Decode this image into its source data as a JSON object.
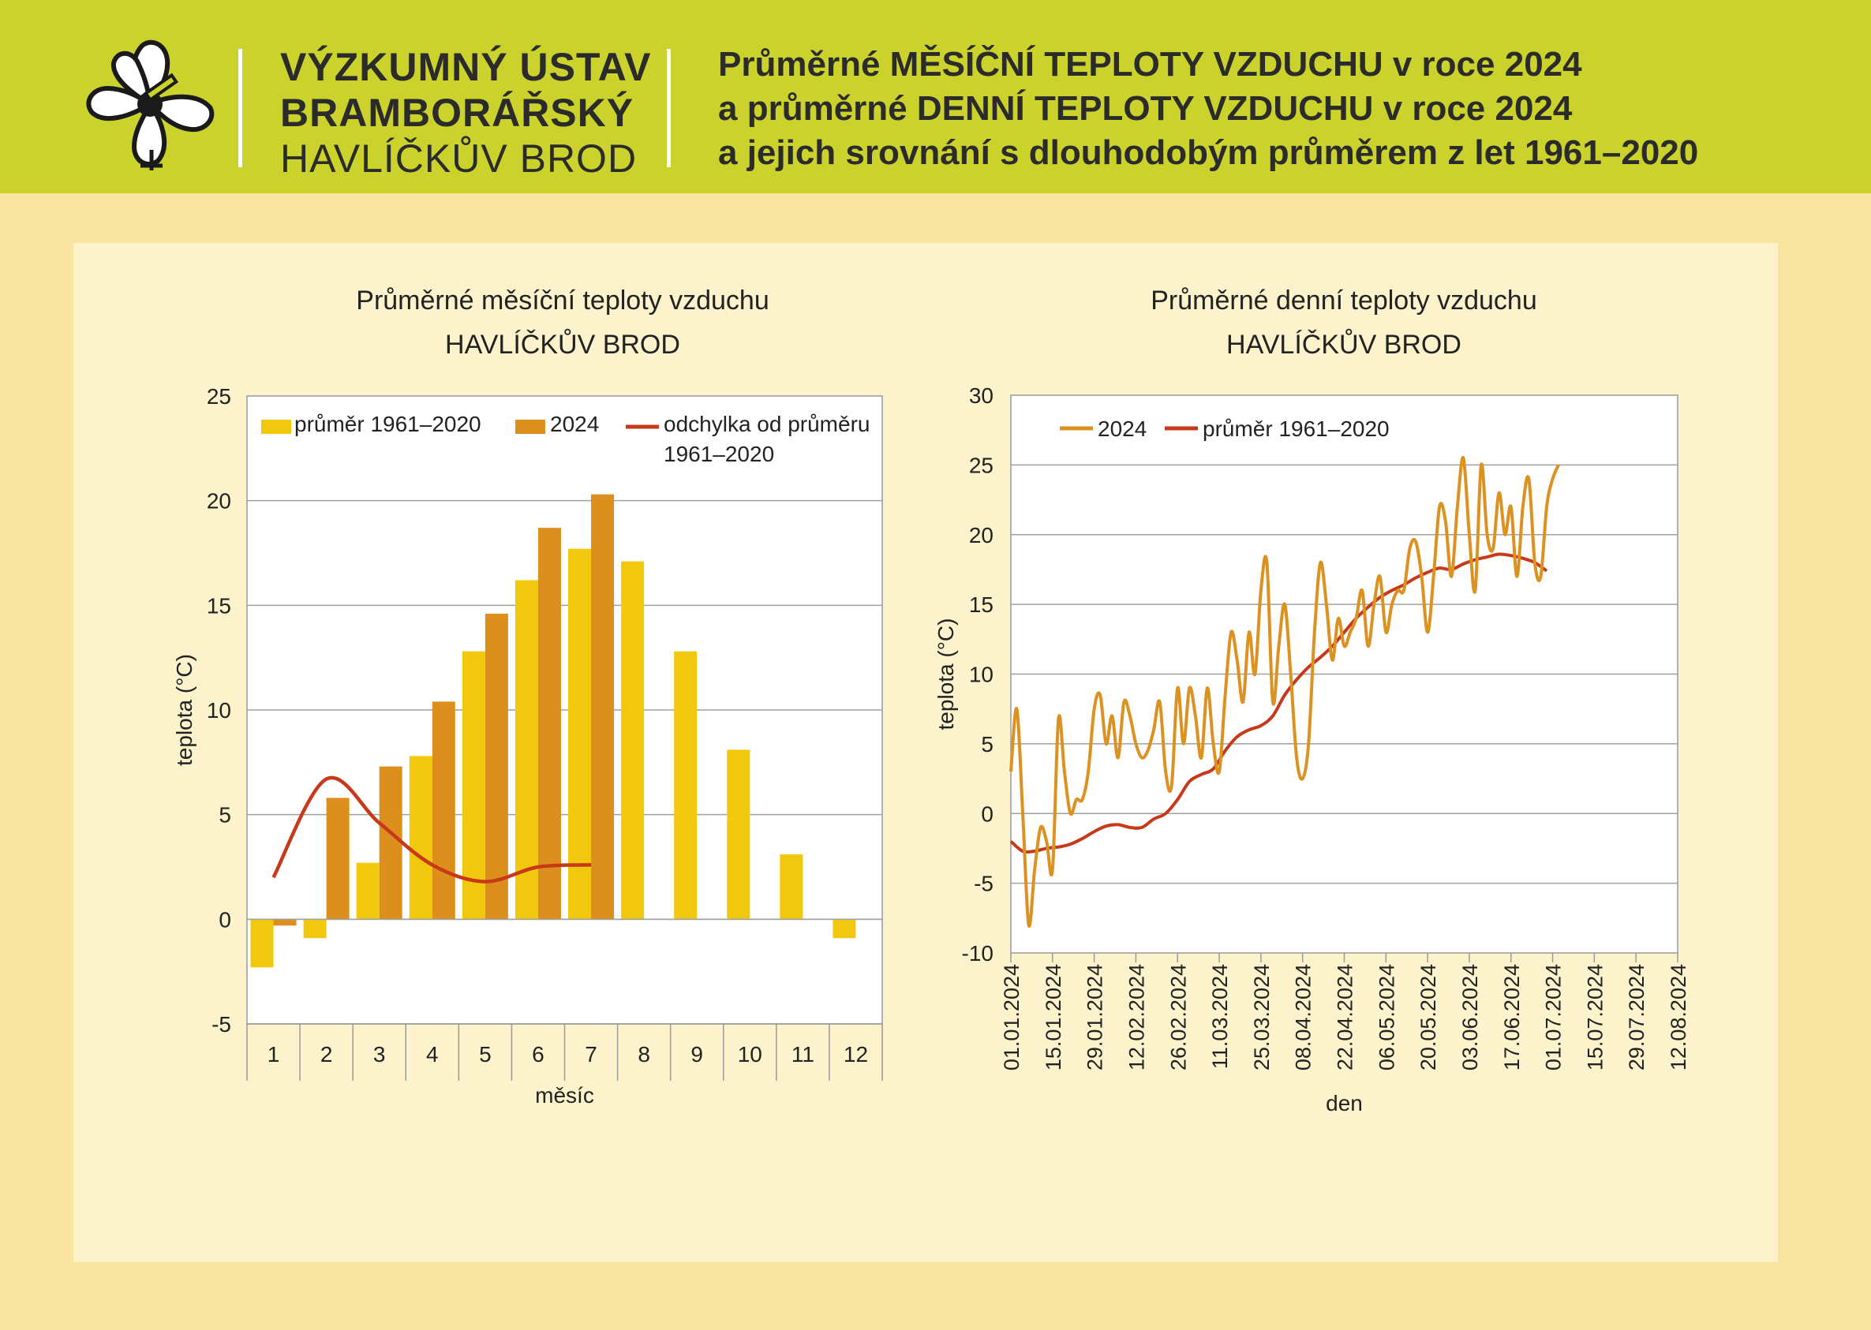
{
  "header": {
    "org_line1": "VÝZKUMNÝ ÚSTAV",
    "org_line2": "BRAMBORÁŘSKÝ",
    "org_line3": "HAVLÍČKŮV BROD",
    "title_line1": "Průměrné MĚSÍČNÍ TEPLOTY VZDUCHU v roce 2024",
    "title_line2": "a průměrné DENNÍ TEPLOTY VZDUCHU v roce 2024",
    "title_line3": "a jejich srovnání s dlouhodobým průměrem z let 1961–2020",
    "logo_icon": "flower-logo-icon"
  },
  "colors": {
    "header_bg": "#cbd22b",
    "page_bg": "#fae5a0",
    "panel_bg": "#fcf2cc",
    "avg_bar": "#f2c80f",
    "bar_2024": "#dc8f1c",
    "deviation_line": "#c8391a",
    "daily_2024": "#dc9221",
    "daily_avg": "#c8391a"
  },
  "chart_data": [
    {
      "type": "bar",
      "title": "Průměrné měsíční teploty vzduchu",
      "subtitle": "HAVLÍČKŮV BROD",
      "xlabel": "měsíc",
      "ylabel": "teplota (°C)",
      "ylim": [
        -5,
        25
      ],
      "yticks": [
        -5,
        0,
        5,
        10,
        15,
        20,
        25
      ],
      "grid": true,
      "legend_position": "top",
      "categories": [
        "1",
        "2",
        "3",
        "4",
        "5",
        "6",
        "7",
        "8",
        "9",
        "10",
        "11",
        "12"
      ],
      "series": [
        {
          "name": "průměr 1961–2020",
          "kind": "bar",
          "values": [
            -2.3,
            -0.9,
            2.7,
            7.8,
            12.8,
            16.2,
            17.7,
            17.1,
            12.8,
            8.1,
            3.1,
            -0.9
          ]
        },
        {
          "name": "2024",
          "kind": "bar",
          "values": [
            -0.3,
            5.8,
            7.3,
            10.4,
            14.6,
            18.7,
            20.3,
            null,
            null,
            null,
            null,
            null
          ]
        },
        {
          "name": "odchylka od průměru 1961–2020",
          "kind": "line",
          "values": [
            2.0,
            6.7,
            4.6,
            2.6,
            1.8,
            2.5,
            2.6,
            null,
            null,
            null,
            null,
            null
          ]
        }
      ]
    },
    {
      "type": "line",
      "title": "Průměrné denní teploty vzduchu",
      "subtitle": "HAVLÍČKŮV BROD",
      "xlabel": "den",
      "ylabel": "teplota (°C)",
      "ylim": [
        -10,
        30
      ],
      "yticks": [
        -10,
        -5,
        0,
        5,
        10,
        15,
        20,
        25,
        30
      ],
      "grid": true,
      "legend_position": "top",
      "xticks": [
        "01.01.2024",
        "15.01.2024",
        "29.01.2024",
        "12.02.2024",
        "26.02.2024",
        "11.03.2024",
        "25.03.2024",
        "08.04.2024",
        "22.04.2024",
        "06.05.2024",
        "20.05.2024",
        "03.06.2024",
        "17.06.2024",
        "01.07.2024",
        "15.07.2024",
        "29.07.2024",
        "12.08.2024"
      ],
      "series": [
        {
          "name": "2024",
          "x_start": "2024-01-01",
          "step_days": 2,
          "values": [
            3.0,
            7.5,
            0.0,
            -8.0,
            -4.0,
            -1.0,
            -2.0,
            -4.0,
            6.8,
            3.0,
            0.0,
            1.0,
            1.0,
            3.0,
            7.5,
            8.5,
            5.0,
            7.0,
            4.0,
            8.0,
            7.0,
            5.0,
            4.0,
            4.5,
            6.0,
            8.0,
            3.0,
            2.0,
            9.0,
            5.0,
            9.0,
            7.0,
            4.0,
            9.0,
            5.0,
            3.0,
            8.5,
            13.0,
            11.0,
            8.0,
            13.0,
            10.0,
            16.0,
            18.0,
            8.0,
            12.0,
            15.0,
            10.0,
            4.0,
            2.5,
            5.0,
            13.0,
            18.0,
            15.0,
            11.0,
            14.0,
            12.0,
            13.0,
            14.0,
            16.0,
            12.0,
            15.0,
            17.0,
            13.0,
            15.0,
            16.0,
            16.0,
            19.0,
            19.5,
            17.0,
            13.0,
            17.0,
            22.0,
            21.0,
            17.0,
            22.0,
            25.5,
            20.0,
            16.0,
            25.0,
            20.0,
            19.0,
            23.0,
            20.0,
            22.0,
            17.0,
            22.0,
            24.0,
            18.0,
            17.0,
            22.0,
            24.0,
            25.0
          ]
        },
        {
          "name": "průměr 1961–2020",
          "x_start": "2024-01-01",
          "step_days": 4,
          "values": [
            -2.0,
            -2.7,
            -2.7,
            -2.5,
            -2.4,
            -2.2,
            -1.8,
            -1.3,
            -0.9,
            -0.8,
            -1.0,
            -1.0,
            -0.4,
            0.0,
            1.0,
            2.3,
            2.8,
            3.2,
            4.5,
            5.5,
            6.0,
            6.3,
            7.0,
            8.5,
            9.6,
            10.5,
            11.2,
            12.0,
            13.0,
            14.0,
            14.8,
            15.5,
            16.0,
            16.4,
            16.9,
            17.3,
            17.6,
            17.5,
            17.9,
            18.2,
            18.4,
            18.6,
            18.5,
            18.3,
            18.0,
            17.4
          ]
        }
      ]
    }
  ]
}
